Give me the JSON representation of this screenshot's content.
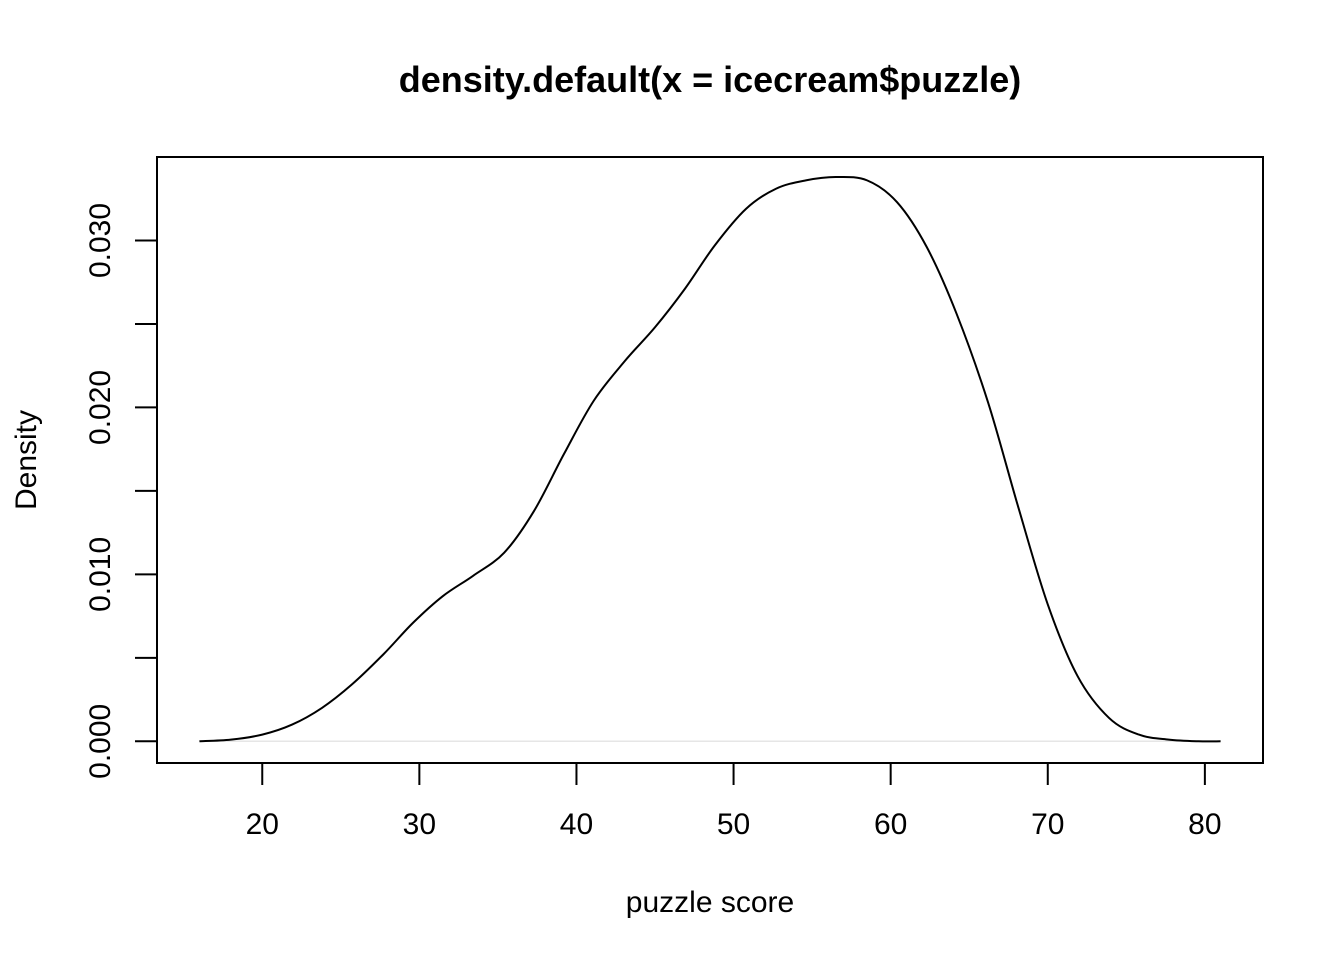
{
  "chart_data": {
    "type": "line",
    "title": "density.default(x = icecream$puzzle)",
    "xlabel": "puzzle score",
    "ylabel": "Density",
    "xlim": [
      13.3,
      83.7
    ],
    "ylim": [
      -0.0013,
      0.035
    ],
    "x_ticks": [
      20,
      30,
      40,
      50,
      60,
      70,
      80
    ],
    "x_tick_labels": [
      "20",
      "30",
      "40",
      "50",
      "60",
      "70",
      "80"
    ],
    "y_ticks": [
      0.0,
      0.005,
      0.01,
      0.015,
      0.02,
      0.025,
      0.03
    ],
    "y_tick_labels": [
      "0.000",
      "",
      "0.010",
      "",
      "0.020",
      "",
      "0.030"
    ],
    "grid": false,
    "legend": "none",
    "line_color": "#000000",
    "zero_line_color": "#e6e6e6",
    "series": [
      {
        "x": [
          16.0,
          18.0,
          20.0,
          21.9,
          23.8,
          25.7,
          27.7,
          29.6,
          31.5,
          33.4,
          35.4,
          37.3,
          39.2,
          41.1,
          43.1,
          45.0,
          46.9,
          48.8,
          50.8,
          52.7,
          54.6,
          56.5,
          58.5,
          60.4,
          62.3,
          64.2,
          66.2,
          68.1,
          70.0,
          71.9,
          73.9,
          75.8,
          77.7,
          79.6,
          81.0
        ],
        "values": [
          0.0,
          0.0001,
          0.0004,
          0.001,
          0.002,
          0.0034,
          0.0052,
          0.0071,
          0.0087,
          0.0099,
          0.0113,
          0.0138,
          0.0172,
          0.0204,
          0.0228,
          0.0248,
          0.0271,
          0.0297,
          0.0319,
          0.0331,
          0.0336,
          0.0338,
          0.0336,
          0.0323,
          0.0296,
          0.0256,
          0.0203,
          0.0141,
          0.0082,
          0.0039,
          0.0014,
          0.0004,
          0.0001,
          0.0,
          0.0
        ]
      }
    ]
  }
}
